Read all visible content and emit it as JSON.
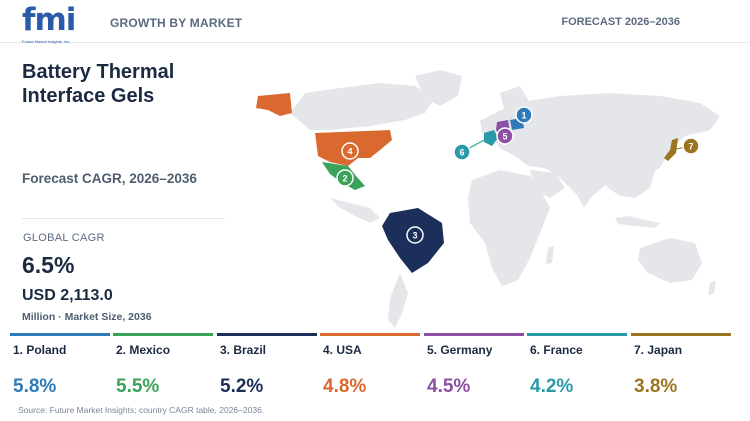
{
  "header": {
    "logo_text": "fmi",
    "logo_tagline": "Future Market Insights, Inc.",
    "section": "GROWTH BY MARKET",
    "forecast": "FORECAST 2026–2036"
  },
  "title": "Battery Thermal Interface Gels",
  "forecast_cagr_label": "Forecast CAGR, 2026–2036",
  "global": {
    "label": "GLOBAL CAGR",
    "value": "6.5%",
    "market_size": "USD 2,113.0",
    "market_size_label": "Million · Market Size, 2036"
  },
  "chart_data": {
    "type": "table",
    "categories": [
      "Poland",
      "Mexico",
      "Brazil",
      "USA",
      "Germany",
      "France",
      "Japan"
    ],
    "ranks": [
      "1",
      "2",
      "3",
      "4",
      "5",
      "6",
      "7"
    ],
    "values": [
      5.8,
      5.5,
      5.2,
      4.8,
      4.5,
      4.2,
      3.8
    ],
    "value_labels": [
      "5.8%",
      "5.5%",
      "5.2%",
      "4.8%",
      "4.5%",
      "4.2%",
      "3.8%"
    ],
    "card_labels": [
      "1. Poland",
      "2. Mexico",
      "3. Brazil",
      "4. USA",
      "5. Germany",
      "6. France",
      "7. Japan"
    ],
    "colors": [
      "#2f7bb8",
      "#3aa35a",
      "#1b2f5a",
      "#d9692e",
      "#8b4fa3",
      "#2b9aa8",
      "#9b7422"
    ]
  },
  "source": "Source: Future Market Insights; country CAGR table, 2026–2036.",
  "colors": {
    "land": "#e4e6e9",
    "ink": "#1b2a41"
  }
}
